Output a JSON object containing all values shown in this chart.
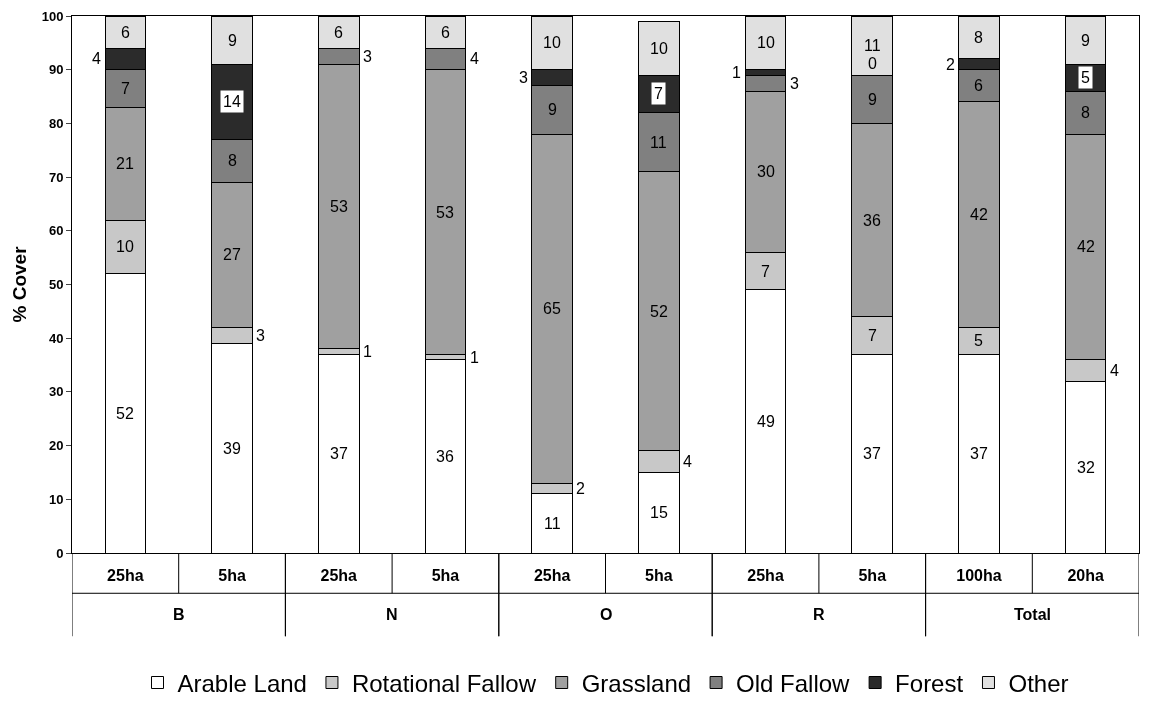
{
  "chart_data": {
    "type": "bar",
    "stacked": true,
    "ylabel": "% Cover",
    "categories": [
      "25ha",
      "5ha",
      "25ha",
      "5ha",
      "25ha",
      "5ha",
      "25ha",
      "5ha",
      "100ha",
      "20ha"
    ],
    "annotations": [
      "B",
      "N",
      "O",
      "R",
      "Total"
    ],
    "series": [
      {
        "name": "Arable Land",
        "color": "#ffffff",
        "values": [
          52,
          39,
          37,
          36,
          11,
          15,
          49,
          37,
          37,
          32
        ],
        "value_labels": [
          "52",
          "39",
          "37",
          "36",
          "11",
          "15",
          "49",
          "37",
          "37",
          "32"
        ]
      },
      {
        "name": "Rotational Fallow",
        "color": "#c8c8c8",
        "values": [
          10,
          3,
          1,
          1,
          2,
          4,
          7,
          7,
          5,
          4
        ],
        "value_labels": [
          "10",
          "3",
          "1",
          "1",
          "2",
          "4",
          "7",
          "7",
          "5",
          "4"
        ]
      },
      {
        "name": "Grassland",
        "color": "#a0a0a0",
        "values": [
          21,
          27,
          53,
          53,
          65,
          52,
          30,
          36,
          42,
          42
        ],
        "value_labels": [
          "21",
          "27",
          "53",
          "53",
          "65",
          "52",
          "30",
          "36",
          "42",
          "42"
        ]
      },
      {
        "name": "Old Fallow",
        "color": "#808080",
        "values": [
          7,
          8,
          3,
          4,
          9,
          11,
          3,
          9,
          6,
          8
        ],
        "value_labels": [
          "7",
          "8",
          "3",
          "4",
          "9",
          "11",
          "3",
          "9",
          "6",
          "8"
        ]
      },
      {
        "name": "Forest",
        "color": "#2b2b2b",
        "values": [
          4,
          14,
          0,
          0,
          3,
          7,
          1,
          0,
          2,
          5
        ],
        "value_labels": [
          "4",
          "14",
          null,
          null,
          "3",
          "7",
          "1",
          "0",
          "2",
          "5"
        ]
      },
      {
        "name": "Other",
        "color": "#e0e0e0",
        "values": [
          6,
          9,
          6,
          6,
          10,
          10,
          10,
          11,
          8,
          9
        ],
        "value_labels": [
          "6",
          "9",
          "6",
          "6",
          "10",
          "10",
          "10",
          "11",
          "8",
          "9"
        ]
      }
    ],
    "ylim": [
      0,
      100
    ],
    "yticks": [
      0,
      10,
      20,
      30,
      40,
      50,
      60,
      70,
      80,
      90,
      100
    ],
    "grid": false,
    "legend": "bottom"
  }
}
